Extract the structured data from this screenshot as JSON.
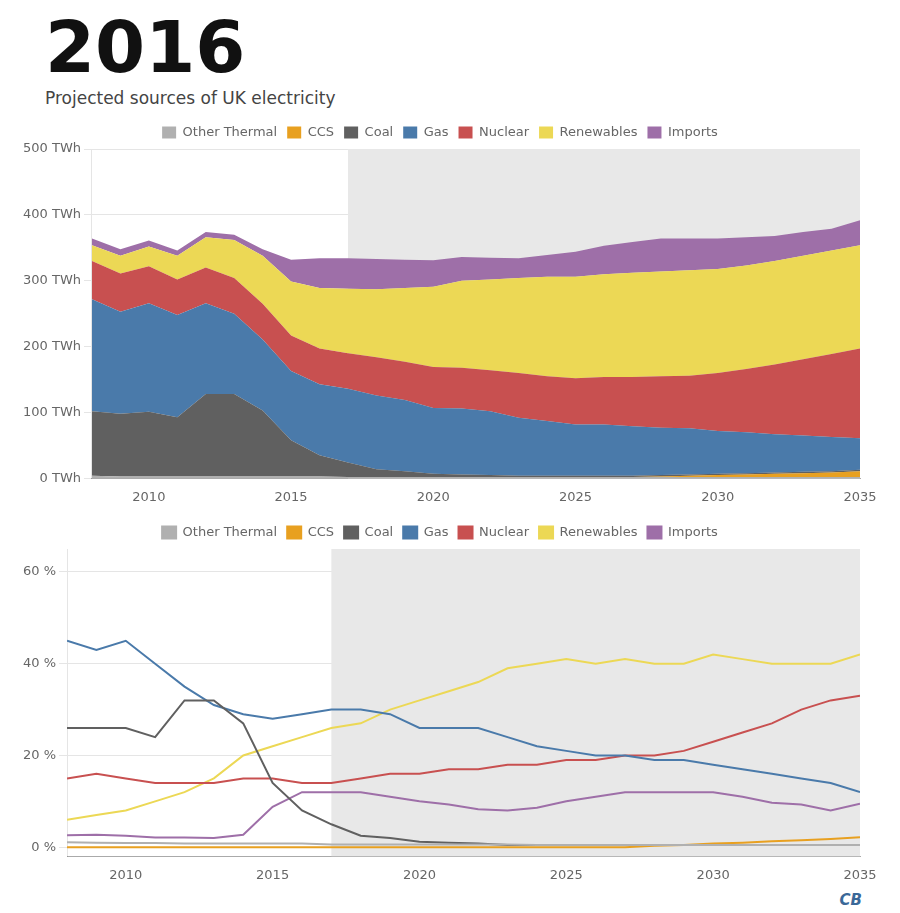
{
  "chart_data": [
    {
      "type": "area",
      "title": "2016",
      "subtitle": "Projected sources of UK electricity",
      "stacked": true,
      "x": [
        2008,
        2009,
        2010,
        2011,
        2012,
        2013,
        2014,
        2015,
        2016,
        2017,
        2018,
        2019,
        2020,
        2021,
        2022,
        2023,
        2024,
        2025,
        2026,
        2027,
        2028,
        2029,
        2030,
        2031,
        2032,
        2033,
        2034,
        2035
      ],
      "xlim": [
        2008,
        2035
      ],
      "xticks": [
        2010,
        2015,
        2020,
        2025,
        2030,
        2035
      ],
      "ylim": [
        0,
        500
      ],
      "yticks": [
        {
          "value": 0,
          "label": "0 TWh"
        },
        {
          "value": 100,
          "label": "100 TWh"
        },
        {
          "value": 200,
          "label": "200 TWh"
        },
        {
          "value": 300,
          "label": "300 TWh"
        },
        {
          "value": 400,
          "label": "400 TWh"
        },
        {
          "value": 500,
          "label": "500 TWh"
        }
      ],
      "grid": "y",
      "legend": "top",
      "forecast_start": 2017,
      "forecast_color": "#e8e8e8",
      "series": [
        {
          "name": "Other Thermal",
          "color": "#b0b0b0",
          "values": [
            4,
            3,
            3,
            3,
            3,
            3,
            3,
            3,
            3,
            2,
            2,
            2,
            2,
            2,
            2,
            2,
            2,
            2,
            2,
            2,
            2,
            2,
            2,
            2,
            2,
            2,
            2,
            2
          ]
        },
        {
          "name": "CCS",
          "color": "#e8a020",
          "values": [
            0,
            0,
            0,
            0,
            0,
            0,
            0,
            0,
            0,
            0,
            0,
            0,
            0,
            0,
            0,
            0,
            0,
            0,
            0,
            0,
            1,
            2,
            3,
            4,
            5,
            6,
            7,
            9
          ]
        },
        {
          "name": "Coal",
          "color": "#606060",
          "values": [
            98,
            95,
            98,
            90,
            125,
            125,
            100,
            55,
            32,
            22,
            12,
            9,
            5,
            4,
            3,
            2,
            2,
            2,
            2,
            2,
            2,
            2,
            2,
            2,
            2,
            2,
            2,
            2
          ]
        },
        {
          "name": "Gas",
          "color": "#4a7aaa",
          "values": [
            170,
            155,
            165,
            155,
            138,
            122,
            108,
            105,
            108,
            112,
            112,
            108,
            100,
            100,
            97,
            88,
            83,
            78,
            78,
            75,
            72,
            70,
            65,
            62,
            58,
            55,
            52,
            48
          ]
        },
        {
          "name": "Nuclear",
          "color": "#c85050",
          "values": [
            58,
            58,
            56,
            54,
            54,
            54,
            54,
            54,
            54,
            54,
            58,
            58,
            62,
            62,
            62,
            68,
            68,
            70,
            72,
            75,
            78,
            80,
            88,
            96,
            106,
            116,
            126,
            136
          ]
        },
        {
          "name": "Renewables",
          "color": "#ecd855",
          "values": [
            24,
            27,
            30,
            36,
            46,
            58,
            73,
            82,
            92,
            98,
            103,
            112,
            122,
            132,
            138,
            144,
            151,
            154,
            156,
            158,
            159,
            160,
            158,
            157,
            157,
            157,
            157,
            157
          ]
        },
        {
          "name": "Imports",
          "color": "#9e6fa8",
          "values": [
            10,
            10,
            9,
            8,
            8,
            8,
            10,
            33,
            45,
            46,
            46,
            43,
            40,
            36,
            33,
            30,
            33,
            38,
            43,
            47,
            50,
            48,
            46,
            43,
            38,
            36,
            33,
            38
          ]
        }
      ]
    },
    {
      "type": "line",
      "annotation": "CB",
      "x": [
        2008,
        2009,
        2010,
        2011,
        2012,
        2013,
        2014,
        2015,
        2016,
        2017,
        2018,
        2019,
        2020,
        2021,
        2022,
        2023,
        2024,
        2025,
        2026,
        2027,
        2028,
        2029,
        2030,
        2031,
        2032,
        2033,
        2034,
        2035
      ],
      "xlim": [
        2008,
        2035
      ],
      "xticks": [
        2010,
        2015,
        2020,
        2025,
        2030,
        2035
      ],
      "ylim": [
        -2,
        65
      ],
      "yticks": [
        {
          "value": 0,
          "label": "0 %"
        },
        {
          "value": 20,
          "label": "20 %"
        },
        {
          "value": 40,
          "label": "40 %"
        },
        {
          "value": 60,
          "label": "60 %"
        }
      ],
      "grid": "y",
      "legend": "top",
      "forecast_start": 2017,
      "forecast_color": "#e8e8e8",
      "series": [
        {
          "name": "Other Thermal",
          "color": "#b0b0b0",
          "values": [
            1.1,
            1.0,
            0.9,
            0.9,
            0.8,
            0.8,
            0.8,
            0.8,
            0.8,
            0.6,
            0.6,
            0.6,
            0.6,
            0.6,
            0.6,
            0.6,
            0.5,
            0.5,
            0.5,
            0.5,
            0.5,
            0.5,
            0.5,
            0.5,
            0.5,
            0.5,
            0.5,
            0.5
          ]
        },
        {
          "name": "CCS",
          "color": "#e8a020",
          "values": [
            0,
            0,
            0,
            0,
            0,
            0,
            0,
            0,
            0,
            0,
            0,
            0,
            0,
            0,
            0,
            0,
            0,
            0,
            0,
            0,
            0.3,
            0.5,
            0.8,
            1.0,
            1.3,
            1.5,
            1.8,
            2.2
          ]
        },
        {
          "name": "Coal",
          "color": "#606060",
          "values": [
            26,
            26,
            26,
            24,
            32,
            32,
            27,
            14,
            8,
            5,
            2.5,
            2.0,
            1.2,
            1.0,
            0.8,
            0.5,
            0.5,
            0.5,
            0.5,
            0.5,
            0.5,
            0.5,
            0.5,
            0.5,
            0.5,
            0.5,
            0.5,
            0.5
          ]
        },
        {
          "name": "Gas",
          "color": "#4a7aaa",
          "values": [
            45,
            43,
            45,
            40,
            35,
            31,
            29,
            28,
            29,
            30,
            30,
            29,
            26,
            26,
            26,
            24,
            22,
            21,
            20,
            20,
            19,
            19,
            18,
            17,
            16,
            15,
            14,
            12
          ]
        },
        {
          "name": "Nuclear",
          "color": "#c85050",
          "values": [
            15,
            16,
            15,
            14,
            14,
            14,
            15,
            15,
            14,
            14,
            15,
            16,
            16,
            17,
            17,
            18,
            18,
            19,
            19,
            20,
            20,
            21,
            23,
            25,
            27,
            30,
            32,
            33
          ]
        },
        {
          "name": "Renewables",
          "color": "#ecd855",
          "values": [
            6,
            7,
            8,
            10,
            12,
            15,
            20,
            22,
            24,
            26,
            27,
            30,
            32,
            34,
            36,
            39,
            40,
            41,
            40,
            41,
            40,
            40,
            42,
            41,
            40,
            40,
            40,
            42
          ]
        },
        {
          "name": "Imports",
          "color": "#9e6fa8",
          "values": [
            2.6,
            2.7,
            2.5,
            2.1,
            2.1,
            2.0,
            2.7,
            8.8,
            12,
            12,
            12,
            11,
            10,
            9.3,
            8.3,
            8.0,
            8.6,
            10,
            11,
            12,
            12,
            12,
            12,
            11,
            9.7,
            9.3,
            8.0,
            9.5
          ]
        }
      ]
    }
  ]
}
